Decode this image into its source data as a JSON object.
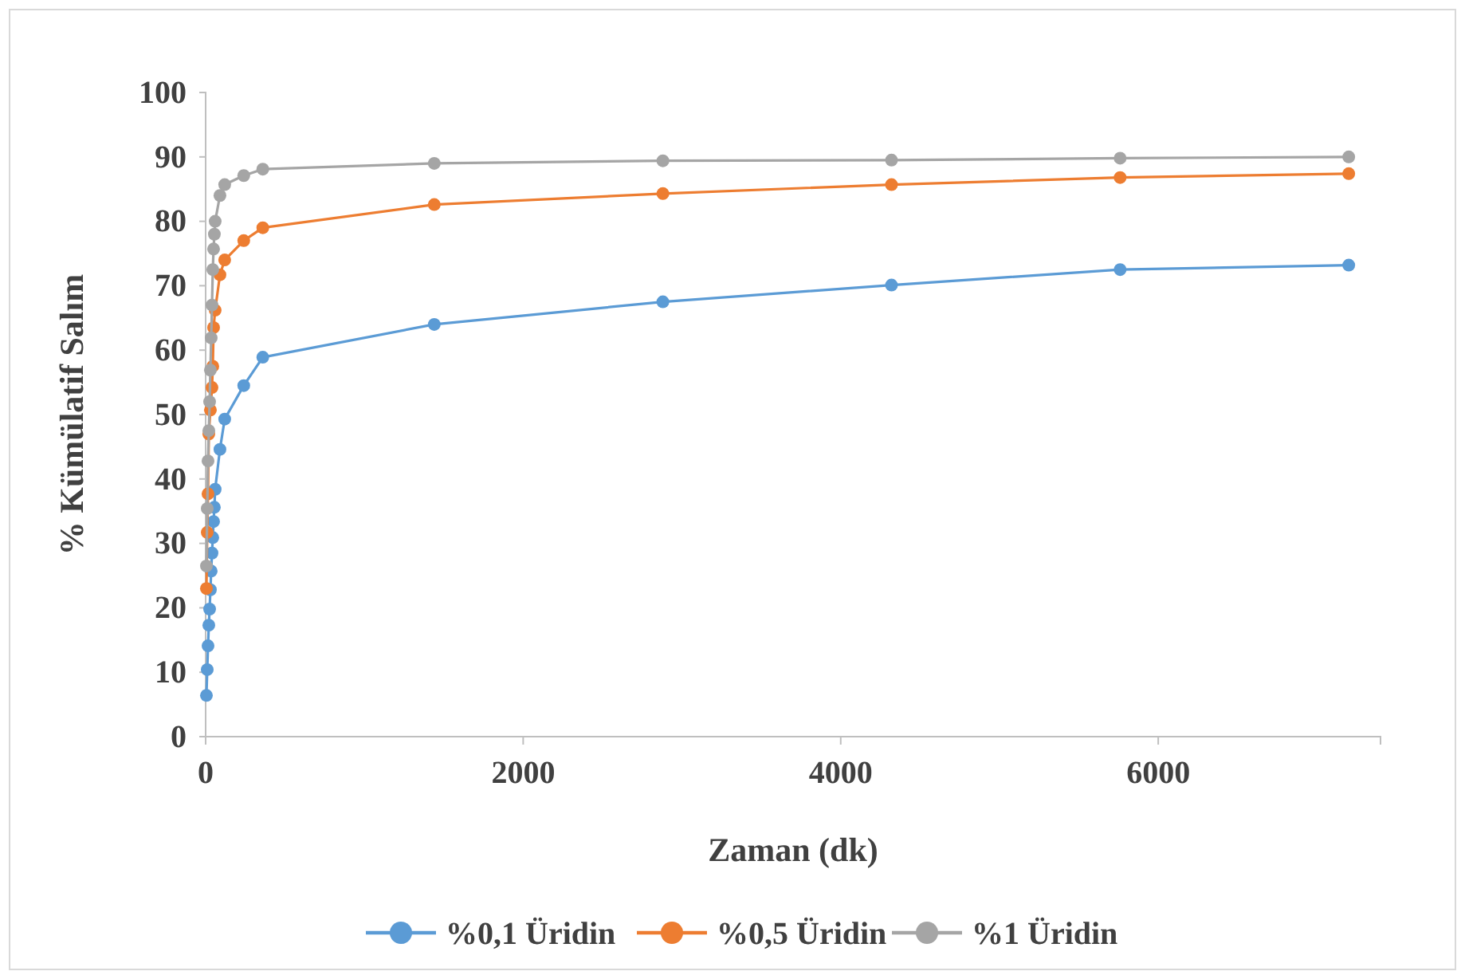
{
  "chart_data": {
    "type": "line",
    "xlabel": "Zaman (dk)",
    "ylabel": "% Kümülatif Salım",
    "xlim": [
      0,
      7400
    ],
    "xticks": [
      0,
      2000,
      4000,
      6000
    ],
    "ylim": [
      0,
      100
    ],
    "yticks": [
      0,
      10,
      20,
      30,
      40,
      50,
      60,
      70,
      80,
      90,
      100
    ],
    "grid": false,
    "legend": "bottom",
    "marker": "circle",
    "line_style": "solid",
    "series": [
      {
        "name": "%0,1 Üridin",
        "color": "#5b9bd5",
        "x": [
          5,
          10,
          15,
          20,
          25,
          30,
          35,
          40,
          45,
          50,
          55,
          60,
          90,
          120,
          240,
          360,
          1440,
          2880,
          4320,
          5760,
          7200
        ],
        "values": [
          6.4,
          10.4,
          14.1,
          17.3,
          19.8,
          22.8,
          25.7,
          28.5,
          30.9,
          33.4,
          35.6,
          38.4,
          44.6,
          49.3,
          54.5,
          58.9,
          64.0,
          67.5,
          70.1,
          72.5,
          73.2
        ]
      },
      {
        "name": "%0,5 Üridin",
        "color": "#ed7d31",
        "x": [
          5,
          10,
          15,
          20,
          30,
          40,
          45,
          50,
          60,
          90,
          120,
          240,
          360,
          1440,
          2880,
          4320,
          5760,
          7200
        ],
        "values": [
          23.0,
          31.7,
          37.7,
          47.0,
          50.7,
          54.2,
          57.5,
          63.5,
          66.2,
          71.7,
          74.0,
          77.0,
          79.0,
          82.6,
          84.3,
          85.7,
          86.8,
          87.4
        ]
      },
      {
        "name": "%1 Üridin",
        "color": "#a5a5a5",
        "x": [
          5,
          10,
          15,
          20,
          25,
          30,
          35,
          40,
          45,
          50,
          55,
          60,
          90,
          120,
          240,
          360,
          1440,
          2880,
          4320,
          5760,
          7200
        ],
        "values": [
          26.5,
          35.4,
          42.8,
          47.5,
          52.0,
          56.9,
          61.9,
          67.0,
          72.5,
          75.7,
          78.0,
          80.0,
          84.0,
          85.7,
          87.1,
          88.1,
          89.0,
          89.4,
          89.5,
          89.8,
          90.0
        ]
      }
    ]
  }
}
